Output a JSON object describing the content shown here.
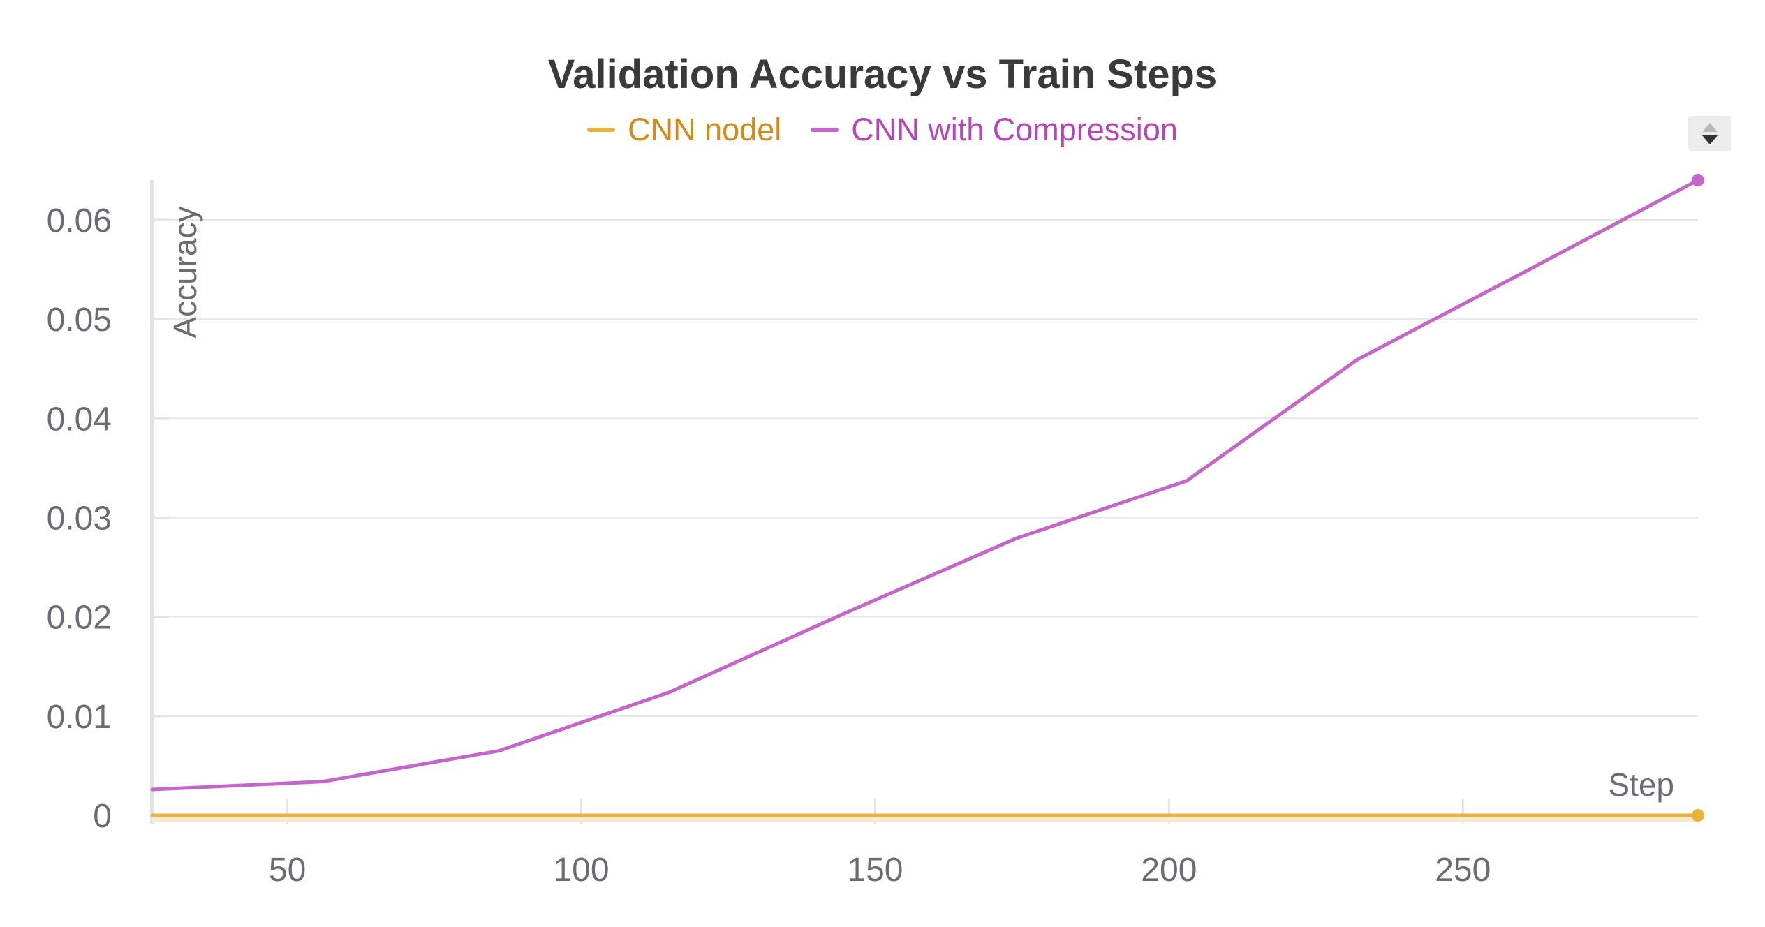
{
  "chart_data": {
    "type": "line",
    "title": "Validation Accuracy vs Train Steps",
    "xlabel": "Step",
    "ylabel": "Accuracy",
    "xlim": [
      27,
      290
    ],
    "ylim": [
      0,
      0.064
    ],
    "xticks": [
      50,
      100,
      150,
      200,
      250
    ],
    "yticks": [
      0,
      0.01,
      0.02,
      0.03,
      0.04,
      0.05,
      0.06
    ],
    "xtick_labels": [
      "50",
      "100",
      "150",
      "200",
      "250"
    ],
    "ytick_labels": [
      "0",
      "0.01",
      "0.02",
      "0.03",
      "0.04",
      "0.05",
      "0.06"
    ],
    "grid": true,
    "legend_position": "top-center",
    "series": [
      {
        "name": "CNN nodel",
        "color": "#e8b33a",
        "x": [
          27,
          56,
          86,
          115,
          145,
          174,
          203,
          232,
          261,
          290
        ],
        "y": [
          0,
          0,
          0,
          0,
          0,
          0,
          0,
          0,
          0,
          0
        ]
      },
      {
        "name": "CNN with Compression",
        "color": "#c564c9",
        "x": [
          27,
          56,
          86,
          115,
          145,
          174,
          203,
          232,
          261,
          290
        ],
        "y": [
          0.0026,
          0.0034,
          0.0065,
          0.0124,
          0.0204,
          0.0279,
          0.0337,
          0.0459,
          0.0549,
          0.064
        ]
      }
    ]
  },
  "legend": {
    "label_text_colors": [
      "#d28a18",
      "#b844bc"
    ]
  },
  "controls": {
    "sort_icon": "sort-arrows-icon"
  }
}
